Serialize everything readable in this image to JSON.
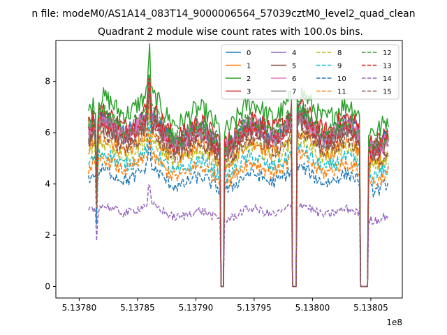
{
  "chart_data": {
    "type": "line",
    "suptitle": "n file: modeM0/AS1A14_083T14_9000006564_57039cztM0_level2_quad_clean",
    "title": "Quadrant 2 module wise count rates with 100.0s bins.",
    "xlabel": "",
    "ylabel": "",
    "x_offset_label": "1e8",
    "xlim": [
      5.13778,
      5.138077
    ],
    "ylim": [
      -0.45,
      9.6
    ],
    "xticks": [
      5.1378,
      5.13785,
      5.1379,
      5.13795,
      5.138,
      5.13805
    ],
    "xtick_labels": [
      "5.13780",
      "5.13785",
      "5.13790",
      "5.13795",
      "5.13800",
      "5.13805"
    ],
    "yticks": [
      0,
      2,
      4,
      6,
      8
    ],
    "ytick_labels": [
      "0",
      "2",
      "4",
      "6",
      "8"
    ],
    "grid": false,
    "legend_position": "top-right",
    "x_start": 5.137808,
    "x_end": 5.138065,
    "gaps": [
      [
        5.137921,
        5.137924
      ],
      [
        5.137982,
        5.137986
      ],
      [
        5.138041,
        5.138048
      ]
    ],
    "event_peaks": [
      5.13786
    ],
    "series": [
      {
        "name": "0",
        "color": "#1f77b4",
        "style": "solid",
        "level": 6.1
      },
      {
        "name": "1",
        "color": "#ff7f0e",
        "style": "solid",
        "level": 5.4
      },
      {
        "name": "2",
        "color": "#2ca02c",
        "style": "solid",
        "level": 6.8
      },
      {
        "name": "3",
        "color": "#d62728",
        "style": "solid",
        "level": 6.3
      },
      {
        "name": "4",
        "color": "#9467bd",
        "style": "solid",
        "level": 6.0
      },
      {
        "name": "5",
        "color": "#8c564b",
        "style": "solid",
        "level": 5.8
      },
      {
        "name": "6",
        "color": "#e377c2",
        "style": "solid",
        "level": 6.0
      },
      {
        "name": "7",
        "color": "#7f7f7f",
        "style": "solid",
        "level": 5.9
      },
      {
        "name": "8",
        "color": "#bcbd22",
        "style": "dashed",
        "level": 5.2
      },
      {
        "name": "9",
        "color": "#17becf",
        "style": "dashed",
        "level": 4.8
      },
      {
        "name": "10",
        "color": "#1f77b4",
        "style": "dashed",
        "level": 4.2
      },
      {
        "name": "11",
        "color": "#ff7f0e",
        "style": "dashed",
        "level": 4.6
      },
      {
        "name": "12",
        "color": "#2ca02c",
        "style": "dashed",
        "level": 6.2
      },
      {
        "name": "13",
        "color": "#d62728",
        "style": "dashed",
        "level": 5.9
      },
      {
        "name": "14",
        "color": "#9467bd",
        "style": "dashed",
        "level": 2.9
      },
      {
        "name": "15",
        "color": "#8c564b",
        "style": "dashed",
        "level": 5.5
      }
    ]
  }
}
